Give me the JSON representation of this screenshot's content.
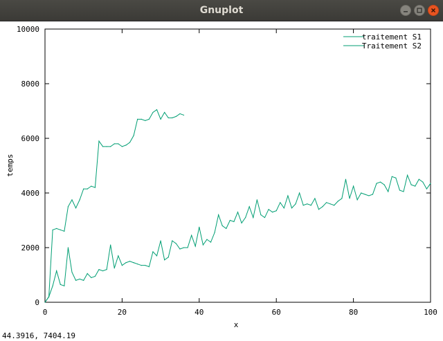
{
  "window": {
    "title": "Gnuplot"
  },
  "status": {
    "coords": "44.3916,  7404.19"
  },
  "colors": {
    "series": "#009e73"
  },
  "chart_data": {
    "type": "line",
    "xlabel": "x",
    "ylabel": "temps",
    "xlim": [
      0,
      100
    ],
    "ylim": [
      0,
      10000
    ],
    "xticks": [
      0,
      20,
      40,
      60,
      80,
      100
    ],
    "yticks": [
      0,
      2000,
      4000,
      6000,
      8000,
      10000
    ],
    "legend_position": "top-right",
    "series": [
      {
        "name": "traitement S1",
        "x": [
          0,
          1,
          2,
          3,
          4,
          5,
          6,
          7,
          8,
          9,
          10,
          11,
          12,
          13,
          14,
          15,
          16,
          17,
          18,
          19,
          20,
          21,
          22,
          23,
          24,
          25,
          26,
          27,
          28,
          29,
          30,
          31,
          32,
          33,
          34,
          35,
          36
        ],
        "y": [
          0,
          200,
          2650,
          2700,
          2650,
          2600,
          3500,
          3750,
          3450,
          3750,
          4150,
          4150,
          4250,
          4200,
          5900,
          5700,
          5700,
          5700,
          5800,
          5800,
          5700,
          5750,
          5850,
          6100,
          6700,
          6700,
          6650,
          6700,
          6950,
          7050,
          6700,
          6950,
          6750,
          6750,
          6800,
          6900,
          6850
        ]
      },
      {
        "name": "Traitement S2",
        "x": [
          0,
          1,
          2,
          3,
          4,
          5,
          6,
          7,
          8,
          9,
          10,
          11,
          12,
          13,
          14,
          15,
          16,
          17,
          18,
          19,
          20,
          21,
          22,
          23,
          24,
          25,
          26,
          27,
          28,
          29,
          30,
          31,
          32,
          33,
          34,
          35,
          36,
          37,
          38,
          39,
          40,
          41,
          42,
          43,
          44,
          45,
          46,
          47,
          48,
          49,
          50,
          51,
          52,
          53,
          54,
          55,
          56,
          57,
          58,
          59,
          60,
          61,
          62,
          63,
          64,
          65,
          66,
          67,
          68,
          69,
          70,
          71,
          72,
          73,
          74,
          75,
          76,
          77,
          78,
          79,
          80,
          81,
          82,
          83,
          84,
          85,
          86,
          87,
          88,
          89,
          90,
          91,
          92,
          93,
          94,
          95,
          96,
          97,
          98,
          99,
          100
        ],
        "y": [
          0,
          200,
          600,
          1150,
          650,
          600,
          2000,
          1100,
          800,
          850,
          800,
          1050,
          900,
          950,
          1200,
          1150,
          1200,
          2100,
          1250,
          1700,
          1350,
          1450,
          1500,
          1450,
          1400,
          1350,
          1350,
          1300,
          1850,
          1700,
          2250,
          1550,
          1650,
          2250,
          2150,
          1950,
          2000,
          2000,
          2450,
          2050,
          2750,
          2100,
          2300,
          2200,
          2550,
          3200,
          2800,
          2700,
          3000,
          2950,
          3300,
          2900,
          3100,
          3500,
          3100,
          3750,
          3200,
          3100,
          3400,
          3300,
          3350,
          3650,
          3450,
          3900,
          3450,
          3600,
          4000,
          3550,
          3600,
          3550,
          3800,
          3400,
          3500,
          3650,
          3600,
          3550,
          3700,
          3800,
          4500,
          3800,
          4250,
          3750,
          4000,
          3950,
          3900,
          3950,
          4350,
          4400,
          4300,
          4050,
          4600,
          4550,
          4100,
          4050,
          4650,
          4300,
          4250,
          4500,
          4400,
          4150,
          4350
        ]
      }
    ]
  }
}
